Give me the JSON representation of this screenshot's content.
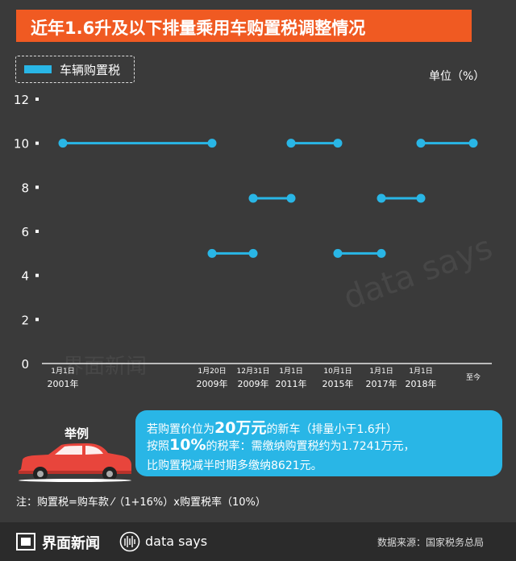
{
  "title": "近年1.6升及以下排量乘用车购置税调整情况",
  "legend_label": "车辆购置税",
  "unit_label": "单位（%）",
  "colors": {
    "line": "#29b6e6",
    "title_bg": "#f05a22",
    "background": "#3a3a3a",
    "car": "#e8453c"
  },
  "chart_data": {
    "type": "line",
    "series": [
      {
        "name": "车辆购置税",
        "segments": [
          {
            "from": "2001-01-01",
            "to": "2009-01-20",
            "value": 10
          },
          {
            "from": "2009-01-20",
            "to": "2009-12-31",
            "value": 5
          },
          {
            "from": "2009-12-31",
            "to": "2011-01-01",
            "value": 7.5
          },
          {
            "from": "2011-01-01",
            "to": "2015-10-01",
            "value": 10
          },
          {
            "from": "2015-10-01",
            "to": "2017-01-01",
            "value": 5
          },
          {
            "from": "2017-01-01",
            "to": "2018-01-01",
            "value": 7.5
          },
          {
            "from": "2018-01-01",
            "to": "至今",
            "value": 10
          }
        ]
      }
    ],
    "ylim": [
      0,
      12
    ],
    "yticks": [
      0,
      2,
      4,
      6,
      8,
      10,
      12
    ],
    "xticks": [
      {
        "line1": "1月1日",
        "line2": "2001年"
      },
      {
        "line1": "1月20日",
        "line2": "2009年"
      },
      {
        "line1": "12月31日",
        "line2": "2009年"
      },
      {
        "line1": "1月1日",
        "line2": "2011年"
      },
      {
        "line1": "10月1日",
        "line2": "2015年"
      },
      {
        "line1": "1月1日",
        "line2": "2017年"
      },
      {
        "line1": "1月1日",
        "line2": "2018年"
      },
      {
        "line1": "至今",
        "line2": ""
      }
    ],
    "grid": false
  },
  "example": {
    "label": "举例",
    "line1_pre": "若购置价位为",
    "line1_price": "20万元",
    "line1_post": "的新车（排量小于1.6升）",
    "line2_pre": "按照",
    "line2_rate": "10%",
    "line2_post": "的税率：需缴纳购置税约为1.7241万元，",
    "line3": "比购置税减半时期多缴纳8621元。"
  },
  "note": "注：购置税=购车款 ⁄（1+16%）x购置税率（10%）",
  "footer": {
    "brand": "界面新闻",
    "datasays": "data says",
    "source": "数据来源：国家税务总局"
  },
  "watermark": {
    "brand": "界面新闻",
    "datasays": "data says"
  }
}
